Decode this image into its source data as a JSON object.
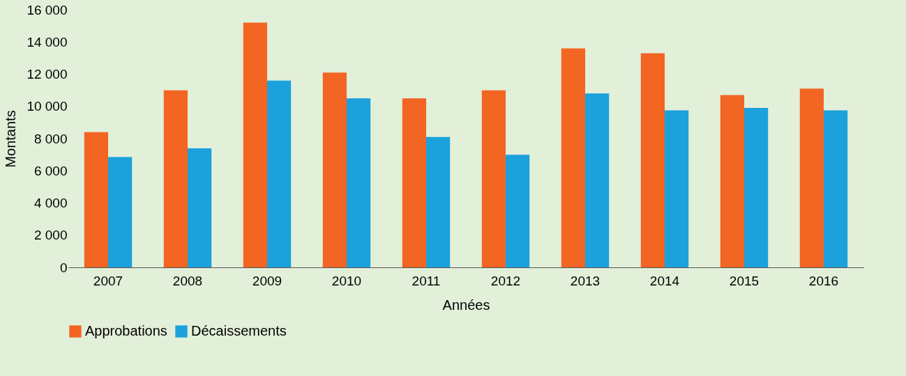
{
  "chart_data": {
    "type": "bar",
    "xlabel": "Années",
    "ylabel": "Montants",
    "categories": [
      "2007",
      "2008",
      "2009",
      "2010",
      "2011",
      "2012",
      "2013",
      "2014",
      "2015",
      "2016"
    ],
    "series": [
      {
        "name": "Approbations",
        "color": "#f26522",
        "values": [
          8400,
          11000,
          15200,
          12100,
          10500,
          11000,
          13600,
          13300,
          10700,
          11100
        ]
      },
      {
        "name": "Décaissements",
        "color": "#1ba1db",
        "values": [
          6850,
          7400,
          11600,
          10500,
          8100,
          7000,
          10800,
          9750,
          9900,
          9750
        ]
      }
    ],
    "ylim": [
      0,
      16000
    ],
    "yticks": [
      0,
      {
        "value": 2000,
        "label": "2 000"
      },
      {
        "value": 4000,
        "label": "4 000"
      },
      {
        "value": 6000,
        "label": "6 000"
      },
      {
        "value": 8000,
        "label": "8 000"
      },
      {
        "value": 10000,
        "label": "10 000"
      },
      {
        "value": 12000,
        "label": "12 000"
      },
      {
        "value": 14000,
        "label": "14 000"
      },
      {
        "value": 16000,
        "label": "16 000"
      }
    ],
    "grid": false,
    "legend": "bottom"
  }
}
